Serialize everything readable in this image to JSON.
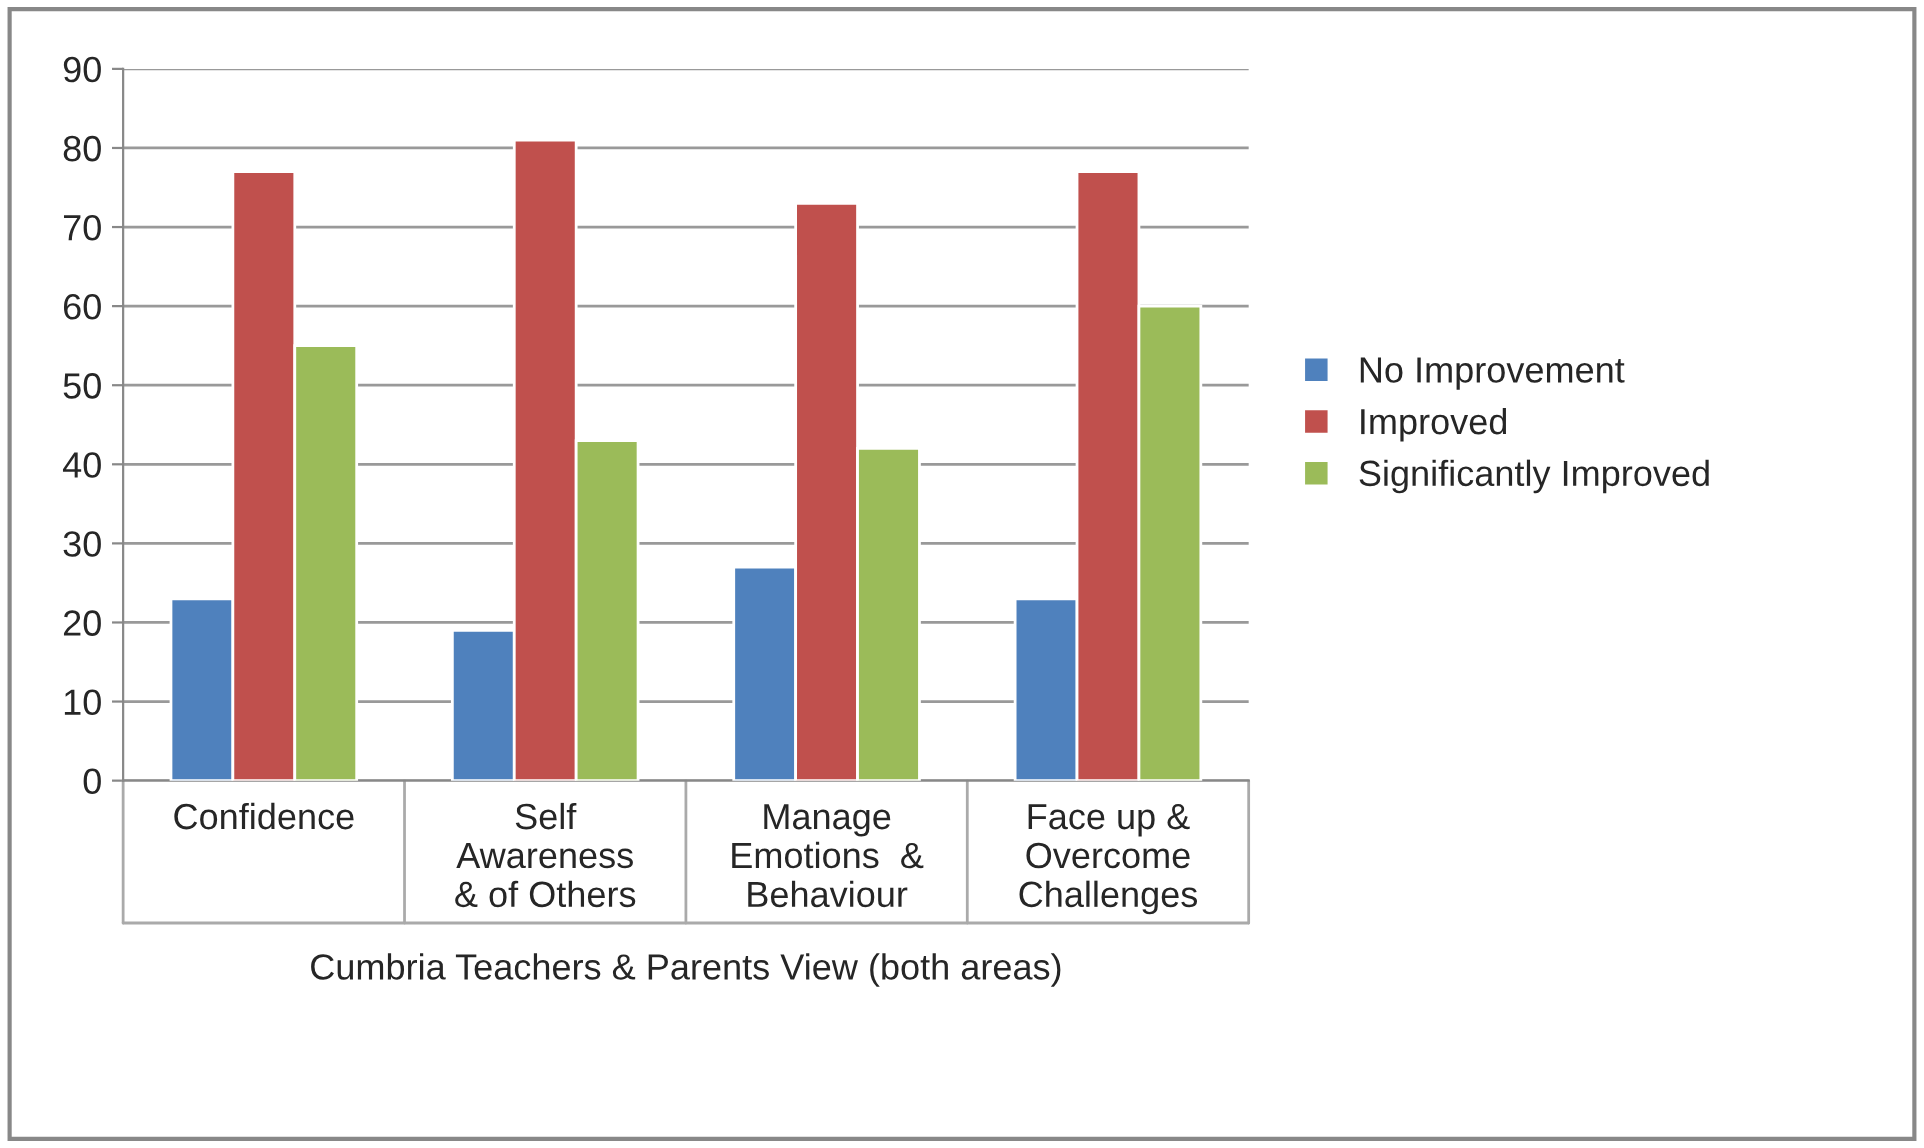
{
  "chart_data": {
    "type": "bar",
    "categories": [
      "Confidence",
      "Self\nAwareness\n& of Others",
      "Manage\nEmotions  &\nBehaviour",
      "Face up &\nOvercome\nChallenges"
    ],
    "xlabel": "Cumbria Teachers & Parents View (both areas)",
    "series": [
      {
        "name": "No Improvement",
        "color": "#4f81bd",
        "values": [
          23,
          19,
          27,
          23
        ]
      },
      {
        "name": "Improved",
        "color": "#c0504d",
        "values": [
          77,
          81,
          73,
          77
        ]
      },
      {
        "name": "Significantly Improved",
        "color": "#9bbb59",
        "values": [
          55,
          43,
          42,
          60
        ]
      }
    ],
    "ylim": [
      0,
      90
    ],
    "yticks": [
      0,
      10,
      20,
      30,
      40,
      50,
      60,
      70,
      80,
      90
    ],
    "grid": "y",
    "legend": "right"
  }
}
